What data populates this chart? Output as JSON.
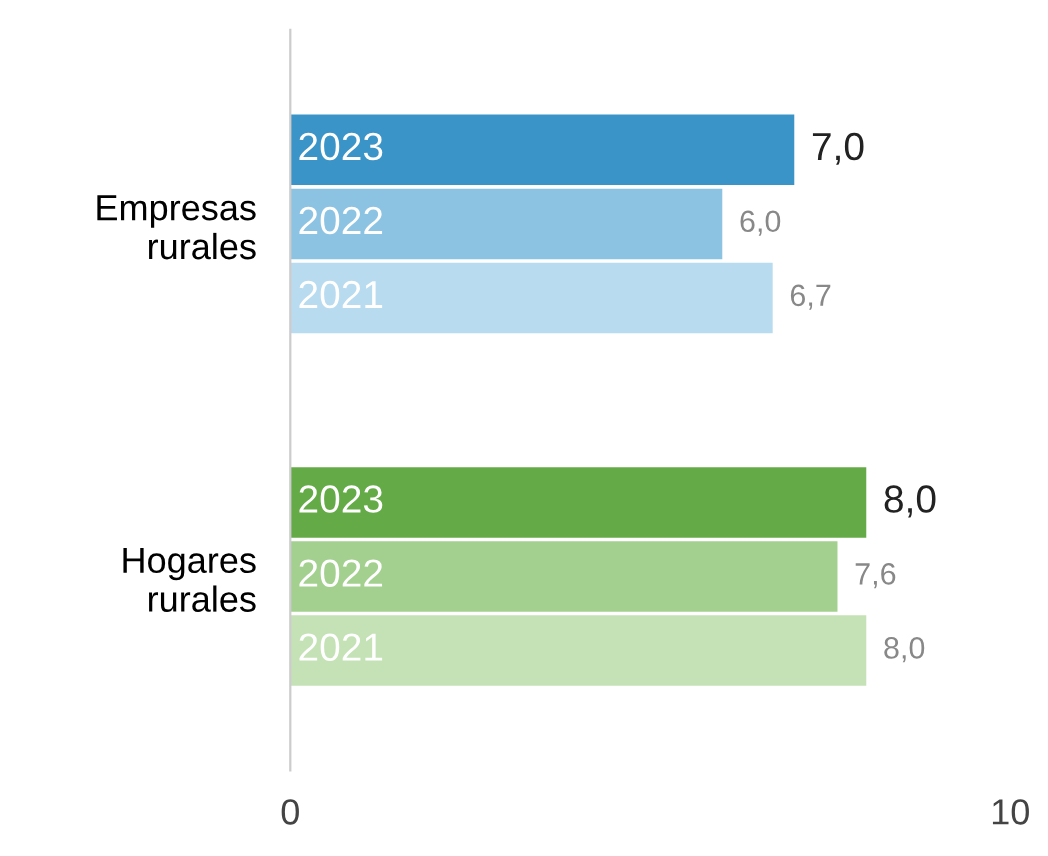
{
  "chart_data": {
    "type": "bar",
    "orientation": "horizontal",
    "categories": [
      "Empresas rurales",
      "Hogares rurales"
    ],
    "series": [
      {
        "name": "2023",
        "colors": [
          "#3a94c8",
          "#64ab47"
        ],
        "values": [
          7.0,
          8.0
        ],
        "value_labels": [
          "7,0",
          "8,0"
        ]
      },
      {
        "name": "2022",
        "colors": [
          "#8cc3e3",
          "#a3d08f"
        ],
        "values": [
          6.0,
          7.6
        ],
        "value_labels": [
          "6,0",
          "7,6"
        ]
      },
      {
        "name": "2021",
        "colors": [
          "#b8dbef",
          "#c5e2b6"
        ],
        "values": [
          6.7,
          8.0
        ],
        "value_labels": [
          "6,7",
          "8,0"
        ]
      }
    ],
    "xlim": [
      0,
      10
    ],
    "xticks": [
      0,
      10
    ],
    "grid": false,
    "legend": false
  }
}
